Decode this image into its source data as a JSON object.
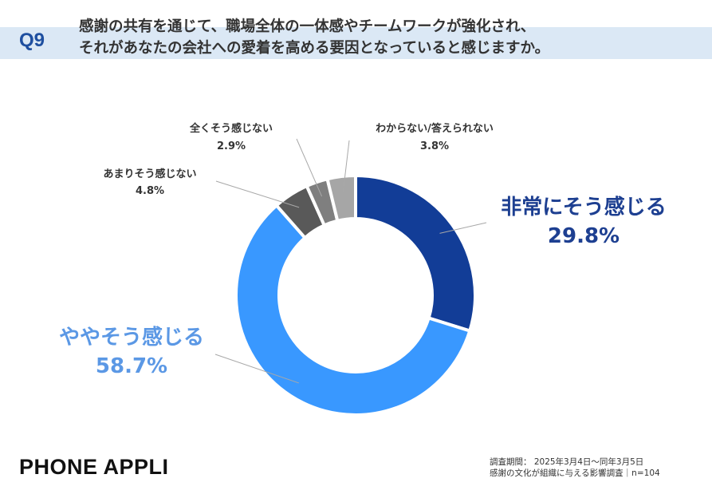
{
  "header": {
    "q_label": "Q9",
    "question_line1": "感謝の共有を通じて、職場全体の一体感やチームワークが強化され、",
    "question_line2": "それがあなたの会社への愛着を高める要因となっていると感じますか。"
  },
  "chart_data": {
    "type": "pie",
    "variant": "donut",
    "slices": [
      {
        "label": "非常にそう感じる",
        "value": 29.8,
        "value_label": "29.8%",
        "color": "#123d97"
      },
      {
        "label": "ややそう感じる",
        "value": 58.7,
        "value_label": "58.7%",
        "color": "#3998ff"
      },
      {
        "label": "あまりそう感じない",
        "value": 4.8,
        "value_label": "4.8%",
        "color": "#595959"
      },
      {
        "label": "全くそう感じない",
        "value": 2.9,
        "value_label": "2.9%",
        "color": "#7f7f7f"
      },
      {
        "label": "わからない/答えられない",
        "value": 3.8,
        "value_label": "3.8%",
        "color": "#a6a6a6"
      }
    ]
  },
  "brand": "PHONE  APPLI",
  "footnote": {
    "line1": "調査期間： 2025年3月4日〜同年3月5日",
    "line2": "感謝の文化が組織に与える影響調査｜n=104"
  }
}
